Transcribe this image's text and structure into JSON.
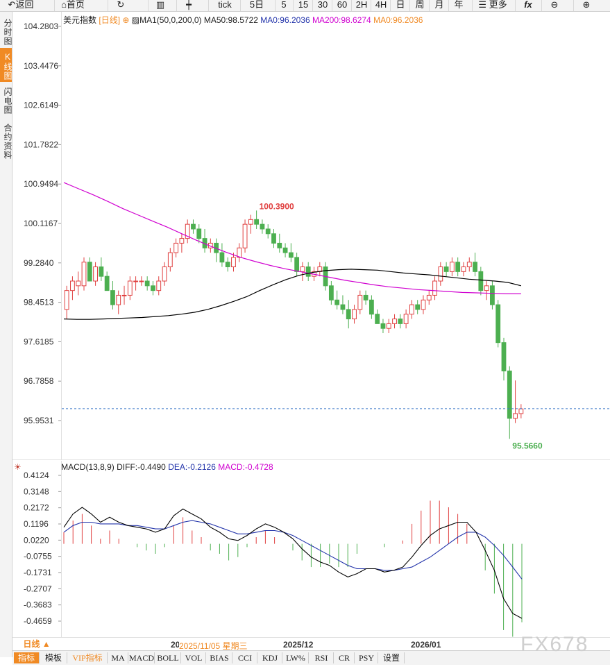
{
  "toolbar": {
    "back": "返回",
    "home": "首页",
    "tick": "tick",
    "fivedays": "5日",
    "periods": [
      "5",
      "15",
      "30",
      "60",
      "2H",
      "4H",
      "日",
      "周",
      "月",
      "年"
    ],
    "more": "更多",
    "fx": "fx"
  },
  "sidebar": {
    "tabs": [
      "分时图",
      "K线图",
      "闪电图",
      "合约资料"
    ],
    "active": "K线图"
  },
  "chart_data": [
    {
      "type": "candlestick",
      "title": "美元指数",
      "period": "[日线]",
      "indicator_label": "MA1(50,0,200,0)",
      "ma_values": [
        {
          "label": "MA50:98.5722",
          "color": "#000000"
        },
        {
          "label": "MA0:96.2036",
          "color": "#2233aa"
        },
        {
          "label": "MA200:98.6274",
          "color": "#d000d0"
        },
        {
          "label": "MA0:96.2036",
          "color": "#f08a24"
        }
      ],
      "yticks": [
        "104.2803",
        "103.4476",
        "102.6149",
        "101.7822",
        "100.9494",
        "100.1167",
        "99.2840",
        "98.4513",
        "97.6185",
        "96.7858",
        "95.9531"
      ],
      "ylim": [
        95.5,
        104.4
      ],
      "high_label": "100.3900",
      "low_label": "95.5660",
      "current_price": 96.2036,
      "candles": [
        [
          98.3,
          98.8,
          98.1,
          98.7
        ],
        [
          98.7,
          99.0,
          98.5,
          98.9
        ],
        [
          98.8,
          99.1,
          98.6,
          98.9
        ],
        [
          98.8,
          99.4,
          98.7,
          99.3
        ],
        [
          99.3,
          99.4,
          98.9,
          98.9
        ],
        [
          98.9,
          99.3,
          98.8,
          99.2
        ],
        [
          99.2,
          99.4,
          98.9,
          99.0
        ],
        [
          99.0,
          99.1,
          98.7,
          98.7
        ],
        [
          98.7,
          98.9,
          98.3,
          98.4
        ],
        [
          98.4,
          98.7,
          98.2,
          98.6
        ],
        [
          98.6,
          98.8,
          98.4,
          98.6
        ],
        [
          98.6,
          99.0,
          98.5,
          98.9
        ],
        [
          98.9,
          99.0,
          98.7,
          98.9
        ],
        [
          98.9,
          99.0,
          98.8,
          98.9
        ],
        [
          98.9,
          99.0,
          98.7,
          98.8
        ],
        [
          98.8,
          98.9,
          98.6,
          98.7
        ],
        [
          98.7,
          99.0,
          98.6,
          98.9
        ],
        [
          98.9,
          99.3,
          98.8,
          99.2
        ],
        [
          99.2,
          99.6,
          99.1,
          99.5
        ],
        [
          99.5,
          99.8,
          99.4,
          99.7
        ],
        [
          99.7,
          99.9,
          99.5,
          99.8
        ],
        [
          99.8,
          100.2,
          99.7,
          100.1
        ],
        [
          100.1,
          100.2,
          99.9,
          100.0
        ],
        [
          100.0,
          100.1,
          99.7,
          99.8
        ],
        [
          99.8,
          100.0,
          99.5,
          99.6
        ],
        [
          99.6,
          99.8,
          99.5,
          99.7
        ],
        [
          99.7,
          99.8,
          99.3,
          99.5
        ],
        [
          99.5,
          99.7,
          99.2,
          99.3
        ],
        [
          99.3,
          99.4,
          99.1,
          99.2
        ],
        [
          99.2,
          99.5,
          99.1,
          99.4
        ],
        [
          99.4,
          99.7,
          99.3,
          99.6
        ],
        [
          99.6,
          100.2,
          99.5,
          100.1
        ],
        [
          100.1,
          100.3,
          99.9,
          100.2
        ],
        [
          100.2,
          100.39,
          100.0,
          100.1
        ],
        [
          100.1,
          100.2,
          99.9,
          100.0
        ],
        [
          100.0,
          100.1,
          99.8,
          99.9
        ],
        [
          99.9,
          100.0,
          99.6,
          99.7
        ],
        [
          99.7,
          99.9,
          99.5,
          99.6
        ],
        [
          99.6,
          99.7,
          99.4,
          99.5
        ],
        [
          99.5,
          99.7,
          99.3,
          99.4
        ],
        [
          99.4,
          99.5,
          99.0,
          99.1
        ],
        [
          99.1,
          99.3,
          98.9,
          99.2
        ],
        [
          99.2,
          99.3,
          98.9,
          99.0
        ],
        [
          99.0,
          99.2,
          98.9,
          99.1
        ],
        [
          99.1,
          99.3,
          99.0,
          99.2
        ],
        [
          99.2,
          99.3,
          98.7,
          98.8
        ],
        [
          98.8,
          98.9,
          98.4,
          98.5
        ],
        [
          98.5,
          98.7,
          98.3,
          98.4
        ],
        [
          98.4,
          98.6,
          98.2,
          98.3
        ],
        [
          98.3,
          98.5,
          97.9,
          98.1
        ],
        [
          98.1,
          98.4,
          98.0,
          98.3
        ],
        [
          98.3,
          98.7,
          98.2,
          98.6
        ],
        [
          98.6,
          98.7,
          98.4,
          98.5
        ],
        [
          98.5,
          98.6,
          98.1,
          98.2
        ],
        [
          98.2,
          98.3,
          98.0,
          98.0
        ],
        [
          98.0,
          98.1,
          97.8,
          97.9
        ],
        [
          97.9,
          98.1,
          97.8,
          98.0
        ],
        [
          98.0,
          98.2,
          97.9,
          98.1
        ],
        [
          98.1,
          98.2,
          97.9,
          98.0
        ],
        [
          98.0,
          98.3,
          97.9,
          98.2
        ],
        [
          98.2,
          98.5,
          98.1,
          98.4
        ],
        [
          98.4,
          98.5,
          98.2,
          98.3
        ],
        [
          98.3,
          98.6,
          98.2,
          98.5
        ],
        [
          98.5,
          98.7,
          98.4,
          98.6
        ],
        [
          98.6,
          99.0,
          98.5,
          98.9
        ],
        [
          98.9,
          99.3,
          98.8,
          99.2
        ],
        [
          99.2,
          99.3,
          99.0,
          99.1
        ],
        [
          99.1,
          99.4,
          99.0,
          99.3
        ],
        [
          99.3,
          99.4,
          99.0,
          99.1
        ],
        [
          99.1,
          99.3,
          99.0,
          99.2
        ],
        [
          99.2,
          99.4,
          99.1,
          99.3
        ],
        [
          99.3,
          99.5,
          99.0,
          99.1
        ],
        [
          99.1,
          99.2,
          98.6,
          98.7
        ],
        [
          98.7,
          98.9,
          98.5,
          98.8
        ],
        [
          98.8,
          98.9,
          98.3,
          98.4
        ],
        [
          98.4,
          98.5,
          97.5,
          97.6
        ],
        [
          97.6,
          97.7,
          96.8,
          97.0
        ],
        [
          97.0,
          97.1,
          95.566,
          96.0
        ],
        [
          96.0,
          96.8,
          95.9,
          96.1
        ],
        [
          96.1,
          96.3,
          96.0,
          96.2
        ]
      ],
      "ma50_values": [
        98.1,
        98.09,
        98.09,
        98.1,
        98.11,
        98.12,
        98.13,
        98.15,
        98.17,
        98.2,
        98.24,
        98.3,
        98.38,
        98.47,
        98.57,
        98.7,
        98.82,
        98.93,
        99.02,
        99.08,
        99.12,
        99.14,
        99.15,
        99.14,
        99.13,
        99.1,
        99.07,
        99.05,
        99.03,
        99.0,
        98.97,
        98.94,
        98.92,
        98.9,
        98.87,
        98.8
      ],
      "ma200_values": [
        100.98,
        100.85,
        100.72,
        100.58,
        100.43,
        100.3,
        100.17,
        100.04,
        99.9,
        99.76,
        99.63,
        99.51,
        99.4,
        99.31,
        99.23,
        99.16,
        99.1,
        99.04,
        98.98,
        98.92,
        98.87,
        98.82,
        98.78,
        98.75,
        98.72,
        98.7,
        98.68,
        98.66,
        98.65,
        98.64,
        98.63,
        98.63
      ]
    },
    {
      "type": "macd",
      "title": "MACD(13,8,9)",
      "diff_label": "DIFF:-0.4490",
      "dea_label": "DEA:-0.2126",
      "macd_label": "MACD:-0.4728",
      "yticks": [
        "0.4124",
        "0.3148",
        "0.2172",
        "0.1196",
        "0.0220",
        "-0.0755",
        "-0.1731",
        "-0.2707",
        "-0.3683",
        "-0.4659"
      ],
      "ylim": [
        -0.53,
        0.45
      ],
      "diff_values": [
        0.1,
        0.18,
        0.22,
        0.18,
        0.13,
        0.16,
        0.13,
        0.11,
        0.1,
        0.09,
        0.07,
        0.09,
        0.17,
        0.21,
        0.18,
        0.15,
        0.1,
        0.07,
        0.03,
        0.02,
        0.05,
        0.09,
        0.12,
        0.1,
        0.07,
        0.03,
        -0.03,
        -0.08,
        -0.11,
        -0.13,
        -0.17,
        -0.2,
        -0.18,
        -0.15,
        -0.15,
        -0.17,
        -0.16,
        -0.14,
        -0.08,
        -0.01,
        0.05,
        0.09,
        0.11,
        0.13,
        0.13,
        0.07,
        -0.04,
        -0.16,
        -0.33,
        -0.42,
        -0.449
      ],
      "dea_values": [
        0.07,
        0.11,
        0.13,
        0.13,
        0.12,
        0.12,
        0.12,
        0.11,
        0.11,
        0.1,
        0.09,
        0.09,
        0.11,
        0.13,
        0.14,
        0.13,
        0.12,
        0.1,
        0.08,
        0.06,
        0.06,
        0.07,
        0.08,
        0.08,
        0.07,
        0.05,
        0.02,
        -0.01,
        -0.04,
        -0.07,
        -0.1,
        -0.13,
        -0.15,
        -0.15,
        -0.15,
        -0.16,
        -0.16,
        -0.15,
        -0.14,
        -0.11,
        -0.08,
        -0.04,
        0.0,
        0.04,
        0.07,
        0.07,
        0.04,
        -0.01,
        -0.07,
        -0.14,
        -0.2126
      ],
      "macd_hist": [
        0.07,
        0.14,
        0.18,
        0.11,
        0.03,
        0.08,
        0.03,
        0.0,
        -0.02,
        -0.04,
        -0.06,
        -0.02,
        0.11,
        0.16,
        0.08,
        0.04,
        -0.04,
        -0.06,
        -0.1,
        -0.08,
        -0.02,
        0.04,
        0.08,
        0.04,
        0.0,
        -0.04,
        -0.1,
        -0.14,
        -0.14,
        -0.12,
        -0.14,
        -0.14,
        -0.06,
        0.0,
        0.0,
        -0.02,
        0.0,
        0.02,
        0.12,
        0.2,
        0.26,
        0.26,
        0.22,
        0.18,
        0.12,
        0.0,
        -0.16,
        -0.3,
        -0.52,
        -0.56,
        -0.4728
      ]
    }
  ],
  "date_axis": {
    "labels": [
      "20",
      "2025/11/05 星期三",
      "2025/12",
      "2026/01"
    ],
    "period_button": "日线 ▲"
  },
  "bottom_tabs": [
    "指标",
    "模板",
    "VIP指标",
    "MA",
    "MACD",
    "BOLL",
    "VOL",
    "BIAS",
    "CCI",
    "KDJ",
    "LW%",
    "RSI",
    "CR",
    "PSY",
    "设置"
  ],
  "watermark": "FX678"
}
